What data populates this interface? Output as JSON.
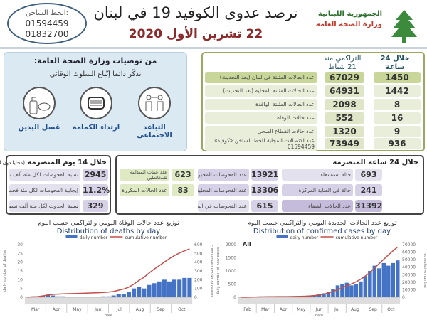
{
  "header": {
    "hotline_label": "الخط الساخن:",
    "hotline_1": "01594459",
    "hotline_2": "01832700",
    "title": "ترصد عدوى الكوفيد 19 في لبنان",
    "date": "22 تشرين الأول 2020",
    "ministry_line1": "الجمهورية اللبنانية",
    "ministry_line2": "وزارة الصحة العامة",
    "logo": "cedar-hand-logo"
  },
  "recommendations": {
    "heading": "من توصيات وزارة الصحة العامة:",
    "subtitle": "تذكّر دائما إتّباع السلوك الوقائي",
    "items": [
      {
        "label": "التباعد الاجتماعي",
        "icon": "social-distancing-icon"
      },
      {
        "label": "ارتداء الكمامة",
        "icon": "face-mask-icon"
      },
      {
        "label": "غسل اليدين",
        "icon": "hand-wash-icon"
      }
    ]
  },
  "main_stats": {
    "col_24h": "خلال 24 ساعة المنصرمة",
    "col_cumulative": "التراكمي منذ 21 شباط",
    "rows": [
      {
        "label": "عدد الحالات المثبتة في لبنان (بعد التحديث)",
        "cumulative": "67029",
        "last24": "1450"
      },
      {
        "label": "عدد الحالات المثبتة المحلية (بعد التحديث)",
        "cumulative": "64931",
        "last24": "1442"
      },
      {
        "label": "عدد الحالات المثبتة الوافدة",
        "cumulative": "2098",
        "last24": "8"
      },
      {
        "label": "عدد حالات الوفاة",
        "cumulative": "552",
        "last24": "16"
      },
      {
        "label": "عدد حالات القطاع الصحي",
        "cumulative": "1320",
        "last24": "9"
      },
      {
        "label": "عدد الاتصالات المجابة للخط الساخن «كوفيد»",
        "sub": "01594459",
        "cumulative": "73949",
        "last24": "936"
      }
    ]
  },
  "fourteen_days": {
    "heading": "خلال 14 يوم المنصرمة",
    "heading_note": "(محليا دون المطار)",
    "rows": [
      {
        "label": "نسبة الفحوصات لكل مئة ألف نسمة",
        "value": "2945"
      },
      {
        "label": "إيجابية الفحوصات لكل مئة فحص",
        "value": "11.2%"
      },
      {
        "label": "نسبة الحدوث لكل مئة ألف نسمة",
        "value": "329"
      }
    ]
  },
  "last_24h": {
    "heading": "خلال 24 ساعة المنصرمة",
    "col1": [
      {
        "label": "حالة استشفاء",
        "value": "693"
      },
      {
        "label": "حالة في العناية المركزة",
        "value": "241"
      },
      {
        "label": "عدد الحالات الشفاء",
        "value": "31392"
      }
    ],
    "col2": [
      {
        "label": "عدد الفحوصات المخبرية",
        "value": "13921"
      },
      {
        "label": "عدد الفحوصات المحلية",
        "value": "13306"
      },
      {
        "label": "عدد الفحوصات في المطار",
        "value": "615"
      }
    ],
    "col3": [
      {
        "label": "عدد عينات الميدانية للمخالطين",
        "value": "623"
      },
      {
        "label": "عدد الحالات المكررة",
        "value": "83"
      }
    ]
  },
  "colors": {
    "bar": "#4472c4",
    "line": "#c0504d",
    "green": "#c9d69a",
    "purple": "#c5bcdc"
  },
  "chart_data": [
    {
      "type": "bar+line",
      "title": "Distribution of deaths by day",
      "title_ar": "توزيع عدد حالات  الوفاة اليومي والتراكمي حسب اليوم",
      "xlabel": "date",
      "ylabel": "daily number of deaths",
      "y2label": "cumulative number of deaths",
      "ylim": [
        0,
        30
      ],
      "y2lim": [
        0,
        600
      ],
      "yticks": [
        0,
        5,
        10,
        15,
        20,
        25,
        30
      ],
      "y2ticks": [
        0,
        100,
        200,
        300,
        400,
        500,
        600
      ],
      "months": [
        "Mar",
        "Apr",
        "May",
        "Jun",
        "Jul",
        "Aug",
        "Sep",
        "Oct"
      ],
      "legend": "top",
      "grid": false,
      "series": [
        {
          "name": "daily number",
          "type": "bar",
          "values": [
            0,
            0.5,
            0.5,
            1,
            1.5,
            1,
            0.5,
            0.5,
            0.3,
            0.2,
            0.2,
            0.3,
            0.3,
            0.3,
            0.3,
            0.5,
            0.5,
            1,
            2,
            2,
            3,
            5,
            6,
            5,
            7,
            8,
            9,
            10,
            9,
            10,
            10,
            11,
            11
          ]
        },
        {
          "name": "cumulative number",
          "type": "line",
          "axis": "right",
          "values": [
            0,
            4,
            7,
            14,
            25,
            32,
            35,
            39,
            41,
            42,
            44,
            46,
            48,
            50,
            52,
            55,
            59,
            66,
            80,
            94,
            115,
            150,
            192,
            227,
            276,
            320,
            360,
            400,
            440,
            475,
            505,
            530,
            552
          ]
        }
      ]
    },
    {
      "type": "bar+line",
      "title": "Distribution of confirmed cases by day",
      "title_ar": "توزيع عدد الحالات الجديدة اليومي والتراكمي حسب اليوم",
      "label": "All",
      "xlabel": "date",
      "ylabel": "daily number of new cases",
      "y2label": "cumulative number",
      "ylim": [
        0,
        2000
      ],
      "y2lim": [
        0,
        70000
      ],
      "yticks": [
        0,
        500,
        1000,
        1500,
        2000
      ],
      "y2ticks": [
        0,
        10000,
        20000,
        30000,
        40000,
        50000,
        60000,
        70000
      ],
      "months": [
        "Feb",
        "Mar",
        "Apr",
        "May",
        "Jun",
        "Jul",
        "Aug",
        "Sep",
        "Oct"
      ],
      "legend": "top",
      "grid": false,
      "series": [
        {
          "name": "daily number",
          "type": "bar",
          "values": [
            1,
            3,
            10,
            25,
            30,
            20,
            10,
            8,
            5,
            5,
            5,
            10,
            15,
            20,
            30,
            50,
            80,
            120,
            150,
            200,
            300,
            450,
            500,
            550,
            450,
            500,
            600,
            800,
            1000,
            1200,
            1100,
            1300,
            1200,
            1300,
            1400
          ]
        },
        {
          "name": "cumulative number",
          "type": "line",
          "axis": "right",
          "values": [
            7,
            28,
            98,
            273,
            483,
            623,
            693,
            749,
            784,
            819,
            854,
            924,
            1029,
            1169,
            1379,
            1729,
            2289,
            3129,
            4179,
            5579,
            7679,
            10029,
            12829,
            15329,
            17829,
            20529,
            24029,
            28229,
            33229,
            38929,
            44829,
            50529,
            56329,
            61829,
            67029
          ]
        }
      ]
    }
  ]
}
